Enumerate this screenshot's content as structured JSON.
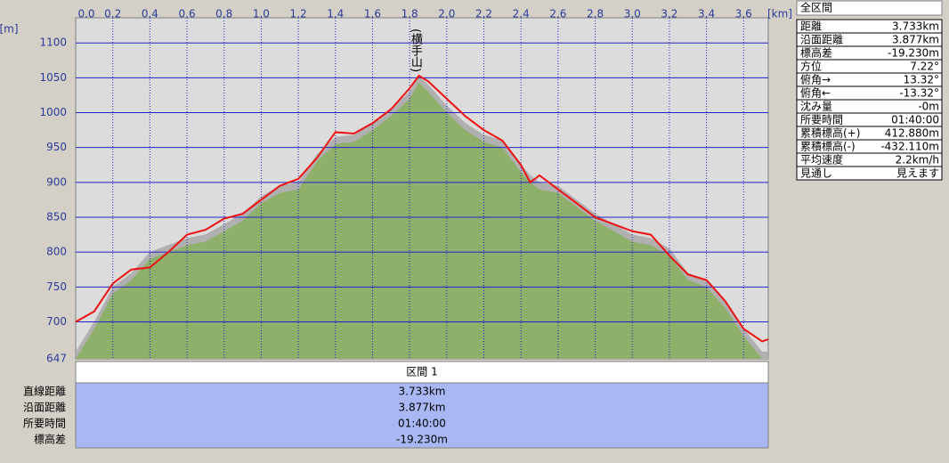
{
  "chart_data": {
    "type": "profile",
    "x_unit_label": "[km]",
    "y_unit_label": "[m]",
    "x": [
      0,
      0.1,
      0.2,
      0.3,
      0.4,
      0.5,
      0.6,
      0.7,
      0.8,
      0.9,
      1.0,
      1.1,
      1.2,
      1.3,
      1.4,
      1.5,
      1.6,
      1.7,
      1.8,
      1.85,
      1.9,
      2.0,
      2.1,
      2.2,
      2.3,
      2.4,
      2.45,
      2.5,
      2.6,
      2.7,
      2.8,
      2.9,
      3.0,
      3.1,
      3.2,
      3.3,
      3.4,
      3.5,
      3.6,
      3.7,
      3.733
    ],
    "series": [
      {
        "kind": "area",
        "color": "#8fb06a",
        "shade": "#b0b0b0",
        "values": [
          647,
          690,
          740,
          760,
          790,
          800,
          810,
          815,
          830,
          845,
          870,
          885,
          890,
          930,
          955,
          958,
          975,
          995,
          1020,
          1043,
          1030,
          1000,
          975,
          958,
          950,
          915,
          900,
          890,
          885,
          865,
          845,
          830,
          815,
          810,
          795,
          760,
          750,
          720,
          680,
          647,
          647
        ]
      },
      {
        "kind": "line",
        "color": "#ee1111",
        "values": [
          700,
          715,
          755,
          775,
          778,
          800,
          825,
          832,
          848,
          855,
          875,
          895,
          905,
          935,
          972,
          970,
          985,
          1005,
          1035,
          1053,
          1045,
          1020,
          995,
          975,
          960,
          925,
          900,
          910,
          890,
          870,
          850,
          840,
          830,
          825,
          795,
          768,
          760,
          730,
          690,
          672,
          675
        ]
      }
    ],
    "xlim": [
      0,
      3.733
    ],
    "xticks": [
      {
        "value": 0,
        "label": "0.0"
      },
      0.2,
      0.4,
      0.6,
      0.8,
      {
        "value": 1,
        "label": "1.0"
      },
      1.2,
      1.4,
      1.6,
      1.8,
      {
        "value": 2,
        "label": "2.0"
      },
      2.2,
      2.4,
      2.6,
      2.8,
      {
        "value": 3,
        "label": "3.0"
      },
      3.2,
      3.4,
      3.6
    ],
    "ylim": [
      647,
      1136
    ],
    "yticks": [
      647,
      700,
      750,
      800,
      850,
      900,
      950,
      1000,
      1050,
      1100
    ],
    "annotations": [
      {
        "text": "(横手山)",
        "x": 1.83
      }
    ],
    "grid": true
  },
  "summary": {
    "title": "全区間",
    "rows": [
      [
        "距離",
        "3.733km"
      ],
      [
        "沿面距離",
        "3.877km"
      ],
      [
        "標高差",
        "-19.230m"
      ],
      [
        "方位",
        "7.22°"
      ],
      [
        "俯角→",
        "13.32°"
      ],
      [
        "俯角←",
        "-13.32°"
      ],
      [
        "沈み量",
        "-0m"
      ],
      [
        "所要時間",
        "01:40:00"
      ],
      [
        "累積標高(+)",
        "412.880m"
      ],
      [
        "累積標高(-)",
        "-432.110m"
      ],
      [
        "平均速度",
        "2.2km/h"
      ],
      [
        "見通し",
        "見えます"
      ]
    ]
  },
  "section_table": {
    "header": "区間 1",
    "rows": [
      [
        "直線距離",
        "3.733km"
      ],
      [
        "沿面距離",
        "3.877km"
      ],
      [
        "所要時間",
        "01:40:00"
      ],
      [
        "標高差",
        "-19.230m"
      ]
    ]
  }
}
